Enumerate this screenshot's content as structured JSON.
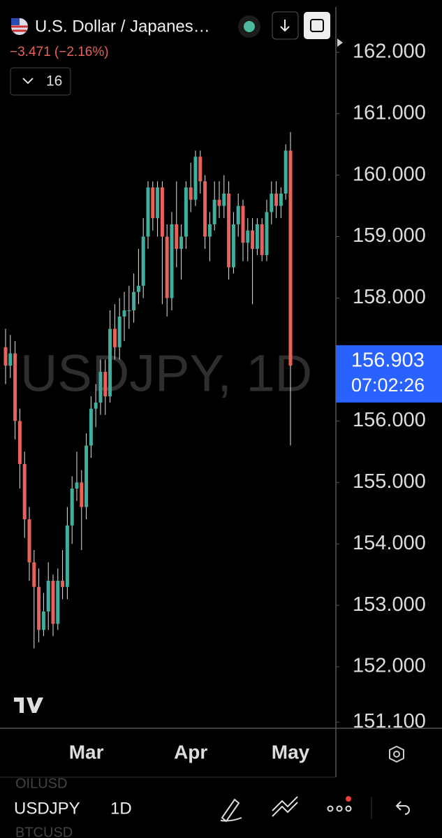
{
  "header": {
    "symbol_name": "U.S. Dollar / Japanes…",
    "change": "−3.471 (−2.16%)",
    "indicator_count": "16"
  },
  "chart_data": {
    "type": "candlestick",
    "watermark": "USDJPY, 1D",
    "categories": [
      null,
      null,
      null,
      null,
      null,
      null,
      null,
      null,
      null,
      null,
      null,
      null,
      null,
      null,
      null,
      null,
      null,
      "Mar",
      null,
      null,
      null,
      null,
      null,
      null,
      null,
      null,
      null,
      null,
      null,
      null,
      null,
      null,
      null,
      null,
      null,
      null,
      null,
      null,
      null,
      "Apr",
      null,
      null,
      null,
      null,
      null,
      null,
      null,
      null,
      null,
      null,
      null,
      null,
      null,
      null,
      null,
      null,
      null,
      null,
      null,
      null,
      "May"
    ],
    "open": [
      157.2,
      156.9,
      157.1,
      156.0,
      155.3,
      154.4,
      153.7,
      153.3,
      152.6,
      152.9,
      153.4,
      152.7,
      153.4,
      153.3,
      154.3,
      154.9,
      155.0,
      154.6,
      155.6,
      156.2,
      156.3,
      156.8,
      156.4,
      157.5,
      157.2,
      157.7,
      157.8,
      157.8,
      158.1,
      158.2,
      159.0,
      159.8,
      159.3,
      159.8,
      159.0,
      158.0,
      159.2,
      158.8,
      159.0,
      159.8,
      159.6,
      160.3,
      159.9,
      159.0,
      159.2,
      159.6,
      159.5,
      159.7,
      158.5,
      159.2,
      159.5,
      158.9,
      159.1,
      158.8,
      159.2,
      158.7,
      159.4,
      159.7,
      159.5,
      159.7,
      160.4
    ],
    "high": [
      157.5,
      157.4,
      157.3,
      156.2,
      155.5,
      154.6,
      153.9,
      153.6,
      153.2,
      153.7,
      153.5,
      153.6,
      153.9,
      154.6,
      155.1,
      155.5,
      155.2,
      155.8,
      156.4,
      156.6,
      157.0,
      157.0,
      157.8,
      157.9,
      158.0,
      158.1,
      158.2,
      158.4,
      158.8,
      159.3,
      159.9,
      159.9,
      159.9,
      159.9,
      159.2,
      159.4,
      159.9,
      159.2,
      159.9,
      160.2,
      160.4,
      160.4,
      160.0,
      159.4,
      159.9,
      159.9,
      160.0,
      159.9,
      159.4,
      159.7,
      159.6,
      159.3,
      159.3,
      159.3,
      159.3,
      159.6,
      159.9,
      159.9,
      159.8,
      160.5,
      160.7
    ],
    "low": [
      156.6,
      156.7,
      155.7,
      154.9,
      154.1,
      153.4,
      152.3,
      152.4,
      152.5,
      152.6,
      152.5,
      152.6,
      153.1,
      153.1,
      154.0,
      154.7,
      153.9,
      154.4,
      155.4,
      155.9,
      156.1,
      156.1,
      156.3,
      157.0,
      157.0,
      157.3,
      157.5,
      157.6,
      157.9,
      158.0,
      158.8,
      159.1,
      159.0,
      157.9,
      157.7,
      157.8,
      158.5,
      158.3,
      158.8,
      159.4,
      159.5,
      159.7,
      158.8,
      158.6,
      159.1,
      159.3,
      159.3,
      158.3,
      158.4,
      159.0,
      158.6,
      158.6,
      157.9,
      158.7,
      158.6,
      158.6,
      159.2,
      159.3,
      159.3,
      159.6,
      155.6
    ],
    "close": [
      156.9,
      157.1,
      156.0,
      155.3,
      154.4,
      153.7,
      153.3,
      152.6,
      152.9,
      153.4,
      152.7,
      153.4,
      153.3,
      154.3,
      154.9,
      155.0,
      154.6,
      155.6,
      156.2,
      156.3,
      156.8,
      156.4,
      157.5,
      157.2,
      157.7,
      157.8,
      157.8,
      158.1,
      158.2,
      159.0,
      159.8,
      159.3,
      159.8,
      159.0,
      158.0,
      159.2,
      158.8,
      159.0,
      159.8,
      159.6,
      160.3,
      159.9,
      159.0,
      159.2,
      159.6,
      159.5,
      159.7,
      158.5,
      159.2,
      159.5,
      158.9,
      159.1,
      158.8,
      159.2,
      158.7,
      159.4,
      159.7,
      159.5,
      159.7,
      160.4,
      156.9
    ],
    "up_color": "#3fae9d",
    "down_color": "#e8625a",
    "ylim": [
      151.0,
      162.85
    ],
    "yticks": [
      {
        "value": 162,
        "label": "162.000"
      },
      {
        "value": 161,
        "label": "161.000"
      },
      {
        "value": 160,
        "label": "160.000"
      },
      {
        "value": 159,
        "label": "159.000"
      },
      {
        "value": 158,
        "label": "158.000"
      },
      {
        "value": 156,
        "label": "156.000"
      },
      {
        "value": 155,
        "label": "155.000"
      },
      {
        "value": 154,
        "label": "154.000"
      },
      {
        "value": 153,
        "label": "153.000"
      },
      {
        "value": 152,
        "label": "152.000"
      },
      {
        "value": 151.1,
        "label": "151.100"
      }
    ],
    "last_price": 156.903,
    "countdown": "07:02:26"
  },
  "toolbar": {
    "symbol": "USDJPY",
    "interval": "1D",
    "ghost_above": "OILUSD",
    "ghost_below": "BTCUSD"
  }
}
